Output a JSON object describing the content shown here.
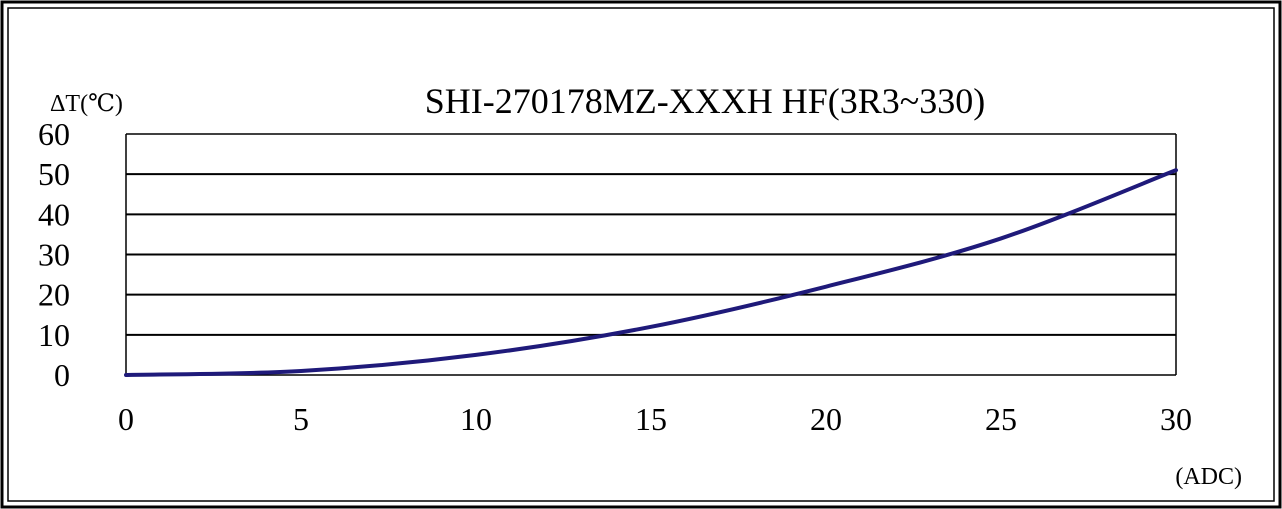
{
  "chart_data": {
    "type": "line",
    "title": "SHI-270178MZ-XXXH HF(3R3~330)",
    "ylabel": "ΔT(℃)",
    "xlabel": "(ADC)",
    "xlim": [
      0,
      30
    ],
    "ylim": [
      0,
      60
    ],
    "x_ticks": [
      0,
      5,
      10,
      15,
      20,
      25,
      30
    ],
    "y_ticks": [
      0,
      10,
      20,
      30,
      40,
      50,
      60
    ],
    "grid": "horizontal",
    "series": [
      {
        "x": [
          0,
          5,
          10,
          15,
          20,
          25,
          30
        ],
        "y": [
          0,
          1,
          5,
          12,
          22,
          34,
          51
        ]
      }
    ],
    "colors": {
      "line": "#1f1a7a",
      "grid": "#000000",
      "frame": "#000000"
    }
  }
}
